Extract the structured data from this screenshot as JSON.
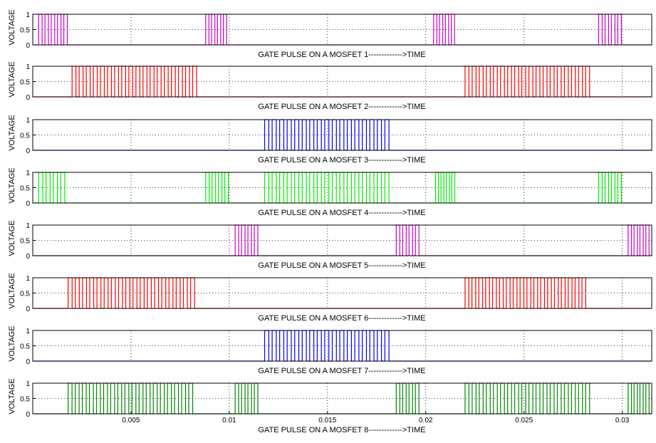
{
  "chart_data": [
    {
      "type": "line",
      "ylabel": "VOLTAGE",
      "xlabel": "GATE PULSE ON A MOSFET 1------------->TIME",
      "yticks": [
        "1",
        "0.5",
        "0"
      ],
      "xticks": [],
      "xlim": [
        0,
        0.0315
      ],
      "ylim": [
        0,
        1
      ],
      "grid": true,
      "color": "#cc00cc",
      "series": [
        {
          "pulse_groups": [
            [
              0.0003,
              0.0019,
              5
            ],
            [
              0.0088,
              0.01,
              4
            ],
            [
              0.0204,
              0.0216,
              4
            ],
            [
              0.0288,
              0.0301,
              4
            ]
          ]
        }
      ]
    },
    {
      "type": "line",
      "ylabel": "VOLTAGE",
      "xlabel": "GATE PULSE ON A MOSFET 2------------->TIME",
      "yticks": [
        "1",
        "0.5",
        "0"
      ],
      "xticks": [],
      "xlim": [
        0,
        0.0315
      ],
      "ylim": [
        0,
        1
      ],
      "grid": true,
      "color": "#ff0000",
      "series": [
        {
          "pulse_groups": [
            [
              0.002,
              0.0085,
              18
            ],
            [
              0.022,
              0.0285,
              18
            ]
          ]
        }
      ]
    },
    {
      "type": "line",
      "ylabel": "VOLTAGE",
      "xlabel": "GATE PULSE ON A MOSFET 3------------->TIME",
      "yticks": [
        "1",
        "0.5",
        "0"
      ],
      "xticks": [],
      "xlim": [
        0,
        0.0315
      ],
      "ylim": [
        0,
        1
      ],
      "grid": true,
      "color": "#0000ff",
      "series": [
        {
          "pulse_groups": [
            [
              0.0118,
              0.0183,
              17
            ]
          ]
        }
      ]
    },
    {
      "type": "line",
      "ylabel": "VOLTAGE",
      "xlabel": "GATE PULSE ON A MOSFET 4------------->TIME",
      "yticks": [
        "1",
        "0.5",
        "0"
      ],
      "xticks": [],
      "xlim": [
        0,
        0.0315
      ],
      "ylim": [
        0,
        1
      ],
      "grid": true,
      "color": "#00ee00",
      "series": [
        {
          "pulse_groups": [
            [
              0.0003,
              0.0018,
              4
            ],
            [
              0.0088,
              0.0101,
              4
            ],
            [
              0.0118,
              0.0183,
              17
            ],
            [
              0.0205,
              0.0216,
              4
            ],
            [
              0.0288,
              0.0301,
              4
            ]
          ]
        }
      ]
    },
    {
      "type": "line",
      "ylabel": "VOLTAGE",
      "xlabel": "GATE PULSE ON A MOSFET 5------------->TIME",
      "yticks": [
        "1",
        "0.5",
        "0"
      ],
      "xticks": [],
      "xlim": [
        0,
        0.0315
      ],
      "ylim": [
        0,
        1
      ],
      "grid": true,
      "color": "#cc00cc",
      "series": [
        {
          "pulse_groups": [
            [
              0.0103,
              0.0116,
              4
            ],
            [
              0.0185,
              0.0198,
              4
            ],
            [
              0.0303,
              0.0315,
              4
            ]
          ]
        }
      ]
    },
    {
      "type": "line",
      "ylabel": "VOLTAGE",
      "xlabel": "GATE PULSE ON A MOSFET 6------------->TIME",
      "yticks": [
        "1",
        "0.5",
        "0"
      ],
      "xticks": [],
      "xlim": [
        0,
        0.0315
      ],
      "ylim": [
        0,
        1
      ],
      "grid": true,
      "color": "#ff0000",
      "series": [
        {
          "pulse_groups": [
            [
              0.0018,
              0.0084,
              18
            ],
            [
              0.022,
              0.0283,
              18
            ]
          ]
        }
      ]
    },
    {
      "type": "line",
      "ylabel": "VOLTAGE",
      "xlabel": "GATE PULSE ON A MOSFET 7------------->TIME",
      "yticks": [
        "1",
        "0.5",
        "0"
      ],
      "xticks": [],
      "xlim": [
        0,
        0.0315
      ],
      "ylim": [
        0,
        1
      ],
      "grid": true,
      "color": "#0000ff",
      "series": [
        {
          "pulse_groups": [
            [
              0.0118,
              0.0183,
              17
            ]
          ]
        }
      ]
    },
    {
      "type": "line",
      "ylabel": "VOLTAGE",
      "xlabel": "GATE PULSE ON A MOSFET 8------------->TIME",
      "yticks": [
        "1",
        "0.5",
        "0"
      ],
      "xticks": [
        "0.005",
        "0.01",
        "0.015",
        "0.02",
        "0.025",
        "0.03"
      ],
      "xlim": [
        0,
        0.0315
      ],
      "ylim": [
        0,
        1
      ],
      "grid": true,
      "color": "#008800",
      "series": [
        {
          "pulse_groups": [
            [
              0.0018,
              0.0083,
              18
            ],
            [
              0.0103,
              0.0116,
              4
            ],
            [
              0.0185,
              0.0198,
              4
            ],
            [
              0.022,
              0.0285,
              18
            ],
            [
              0.0303,
              0.0315,
              4
            ]
          ]
        }
      ]
    }
  ]
}
